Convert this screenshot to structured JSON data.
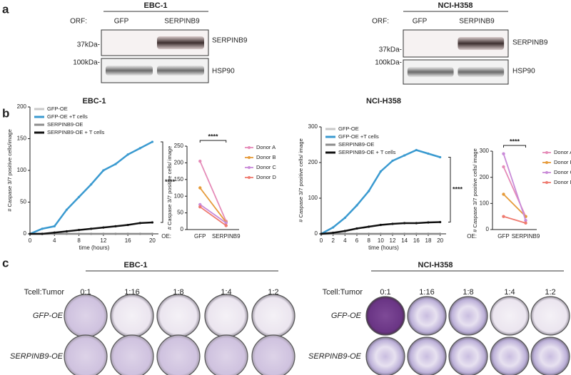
{
  "panel_labels": [
    "a",
    "b",
    "c"
  ],
  "blots": [
    {
      "title": "EBC-1",
      "orf_label": "ORF:",
      "lanes": [
        "GFP",
        "SERPINB9"
      ],
      "markers": [
        "37kDa-",
        "100kDa-"
      ],
      "proteins": [
        "SERPINB9",
        "HSP90"
      ]
    },
    {
      "title": "NCI-H358",
      "orf_label": "ORF:",
      "lanes": [
        "GFP",
        "SERPINB9"
      ],
      "markers": [
        "37kDa-",
        "100kDa-"
      ],
      "proteins": [
        "SERPINB9",
        "HSP90"
      ]
    }
  ],
  "chart_data": [
    {
      "type": "line",
      "title": "EBC-1",
      "x_label": "time (hours)",
      "y_label": "# Caspase 3/7 positive cells/image",
      "x": [
        0,
        2,
        4,
        6,
        8,
        10,
        12,
        14,
        16,
        18,
        20
      ],
      "xlim": [
        0,
        21
      ],
      "xticks": [
        0,
        4,
        8,
        12,
        16,
        20
      ],
      "ylim": [
        0,
        200
      ],
      "yticks": [
        0,
        50,
        100,
        150,
        200
      ],
      "legend": "upper left",
      "annotation": "****",
      "series": [
        {
          "name": "GFP-OE",
          "color": "#c8c8c8",
          "values": [
            0,
            0,
            0,
            0,
            0,
            0,
            0,
            0,
            0,
            0,
            0
          ]
        },
        {
          "name": "GFP-OE +T cells",
          "color": "#3a9ad0",
          "values": [
            0,
            8,
            12,
            38,
            58,
            78,
            100,
            110,
            125,
            135,
            145
          ]
        },
        {
          "name": "SERPINB9-OE",
          "color": "#8c8c8c",
          "values": [
            0,
            0,
            0,
            0,
            0,
            0,
            0,
            0,
            0,
            0,
            0
          ]
        },
        {
          "name": "SERPINB9-OE + T cells",
          "color": "#111111",
          "values": [
            0,
            0,
            2,
            4,
            6,
            8,
            10,
            12,
            14,
            17,
            18
          ]
        }
      ]
    },
    {
      "type": "line",
      "category_label": "OE:",
      "y_label": "# Caspase 3/7 positive cells/ image",
      "categories": [
        "GFP",
        "SERPINB9"
      ],
      "ylim": [
        0,
        250
      ],
      "yticks": [
        0,
        50,
        100,
        150,
        200,
        250
      ],
      "legend": "right",
      "annotation": "****",
      "series": [
        {
          "name": "Donor A",
          "color": "#e58bb8",
          "values": [
            205,
            25
          ]
        },
        {
          "name": "Donor B",
          "color": "#e69b3a",
          "values": [
            125,
            22
          ]
        },
        {
          "name": "Donor C",
          "color": "#c98bd8",
          "values": [
            75,
            20
          ]
        },
        {
          "name": "Donor D",
          "color": "#ef7a6f",
          "values": [
            68,
            12
          ]
        }
      ]
    },
    {
      "type": "line",
      "title": "NCI-H358",
      "x_label": "time (hours)",
      "y_label": "# Caspase 3/7 positive cells/ image",
      "x": [
        0,
        2,
        4,
        6,
        8,
        10,
        12,
        14,
        16,
        18,
        20
      ],
      "xlim": [
        0,
        21
      ],
      "xticks": [
        0,
        2,
        4,
        6,
        8,
        10,
        12,
        14,
        16,
        18,
        20
      ],
      "ylim": [
        0,
        300
      ],
      "yticks": [
        0,
        100,
        200,
        300
      ],
      "legend": "upper left",
      "annotation": "****",
      "series": [
        {
          "name": "GFP-OE",
          "color": "#c8c8c8",
          "values": [
            0,
            0,
            0,
            0,
            0,
            0,
            0,
            0,
            0,
            0,
            0
          ]
        },
        {
          "name": "GFP-OE +T cells",
          "color": "#3a9ad0",
          "values": [
            0,
            18,
            45,
            80,
            120,
            175,
            205,
            220,
            235,
            225,
            215
          ]
        },
        {
          "name": "SERPINB9-OE",
          "color": "#8c8c8c",
          "values": [
            0,
            0,
            0,
            0,
            0,
            0,
            0,
            0,
            0,
            0,
            0
          ]
        },
        {
          "name": "SERPINB9-OE + T cells",
          "color": "#111111",
          "values": [
            0,
            3,
            8,
            15,
            20,
            25,
            28,
            30,
            30,
            32,
            33
          ]
        }
      ]
    },
    {
      "type": "line",
      "category_label": "OE:",
      "y_label": "# Caspase 3/7 positive cells/ image",
      "categories": [
        "GFP",
        "SERPINB9"
      ],
      "ylim": [
        0,
        300
      ],
      "yticks": [
        0,
        100,
        200,
        300
      ],
      "legend": "right",
      "annotation": "****",
      "series": [
        {
          "name": "Donor A",
          "color": "#e58bb8",
          "values": [
            240,
            50
          ]
        },
        {
          "name": "Donor B",
          "color": "#e69b3a",
          "values": [
            135,
            50
          ]
        },
        {
          "name": "Donor C",
          "color": "#c98bd8",
          "values": [
            290,
            35
          ]
        },
        {
          "name": "Donor D",
          "color": "#ef7a6f",
          "values": [
            50,
            25
          ]
        }
      ]
    }
  ],
  "wells": [
    {
      "title": "EBC-1",
      "ratio_label": "Tcell:Tumor",
      "ratios": [
        "0:1",
        "1:16",
        "1:8",
        "1:4",
        "1:2"
      ],
      "rows": [
        "GFP-OE",
        "SERPINB9-OE"
      ]
    },
    {
      "title": "NCI-H358",
      "ratio_label": "Tcell:Tumor",
      "ratios": [
        "0:1",
        "1:16",
        "1:8",
        "1:4",
        "1:2"
      ],
      "rows": [
        "GFP-OE",
        "SERPINB9-OE"
      ]
    }
  ]
}
